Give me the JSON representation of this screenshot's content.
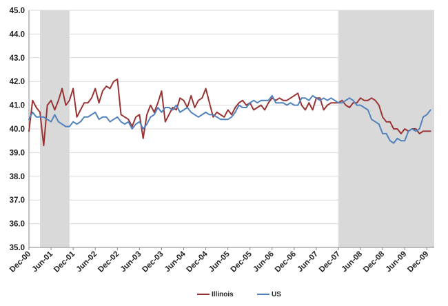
{
  "chart_data": {
    "type": "line",
    "title": "",
    "xlabel": "",
    "ylabel": "",
    "ylim": [
      35.0,
      45.0
    ],
    "yticks": [
      "35.0",
      "36.0",
      "37.0",
      "38.0",
      "39.0",
      "40.0",
      "41.0",
      "42.0",
      "43.0",
      "44.0",
      "45.0"
    ],
    "xticks": [
      "Dec-00",
      "Jun-01",
      "Dec-01",
      "Jun-02",
      "Dec-02",
      "Jun-03",
      "Dec-03",
      "Jun-04",
      "Dec-04",
      "Jun-05",
      "Dec-05",
      "Jun-06",
      "Dec-06",
      "Jun-07",
      "Dec-07",
      "Jun-08",
      "Dec-08",
      "Jun-09",
      "Dec-09"
    ],
    "x_start": "Dec-00",
    "x_end": "Feb-10",
    "recessions": [
      {
        "start": "Mar-01",
        "end": "Nov-01"
      },
      {
        "start": "Dec-07",
        "end": "Feb-10"
      }
    ],
    "grid": true,
    "legend_position": "bottom",
    "colors": {
      "illinois": "#993333",
      "us": "#4f81bd",
      "recession": "#d9d9d9",
      "grid": "#d9d9d9"
    },
    "series": [
      {
        "name": "Illinois",
        "values": [
          39.9,
          41.2,
          40.9,
          40.7,
          39.3,
          41.0,
          41.2,
          40.8,
          41.2,
          41.7,
          41.0,
          41.2,
          41.7,
          40.5,
          40.8,
          41.1,
          41.1,
          41.3,
          41.7,
          41.1,
          41.6,
          41.8,
          41.7,
          42.0,
          42.1,
          40.6,
          40.5,
          40.4,
          40.1,
          40.5,
          40.6,
          39.6,
          40.6,
          41.0,
          40.7,
          41.1,
          41.6,
          40.3,
          40.6,
          40.9,
          40.8,
          41.3,
          41.2,
          40.9,
          41.4,
          40.9,
          41.2,
          41.3,
          41.7,
          41.1,
          40.5,
          40.7,
          40.6,
          40.5,
          40.8,
          40.6,
          40.9,
          41.1,
          41.2,
          41.0,
          41.1,
          40.8,
          40.9,
          41.0,
          40.8,
          41.1,
          41.3,
          41.2,
          41.3,
          41.2,
          41.2,
          41.3,
          41.4,
          41.5,
          41.0,
          40.8,
          41.1,
          40.8,
          41.3,
          41.3,
          40.8,
          41.0,
          41.1,
          41.1,
          41.1,
          41.2,
          41.0,
          40.9,
          41.1,
          41.1,
          41.3,
          41.2,
          41.2,
          41.3,
          41.2,
          41.0,
          40.5,
          40.3,
          40.3,
          40.0,
          40.0,
          39.8,
          40.0,
          39.9,
          40.0,
          40.0,
          39.8,
          39.9,
          39.9,
          39.9
        ],
        "color": "#993333"
      },
      {
        "name": "US",
        "values": [
          40.4,
          40.7,
          40.5,
          40.5,
          40.5,
          40.4,
          40.3,
          40.6,
          40.3,
          40.2,
          40.1,
          40.1,
          40.3,
          40.2,
          40.3,
          40.5,
          40.5,
          40.6,
          40.7,
          40.4,
          40.5,
          40.5,
          40.3,
          40.4,
          40.5,
          40.3,
          40.2,
          40.3,
          40.0,
          40.2,
          40.3,
          40.0,
          40.2,
          40.5,
          40.6,
          40.9,
          40.7,
          40.9,
          40.9,
          40.8,
          41.0,
          40.7,
          40.8,
          40.9,
          40.7,
          40.6,
          40.5,
          40.6,
          40.7,
          40.6,
          40.6,
          40.5,
          40.4,
          40.4,
          40.4,
          40.5,
          40.7,
          41.0,
          40.9,
          40.9,
          41.1,
          41.2,
          41.1,
          41.2,
          41.2,
          41.2,
          41.4,
          41.1,
          41.1,
          41.1,
          41.0,
          41.1,
          41.0,
          41.0,
          41.3,
          41.3,
          41.2,
          41.4,
          41.3,
          41.2,
          41.3,
          41.2,
          41.3,
          41.2,
          41.1,
          41.1,
          41.2,
          41.3,
          41.2,
          41.0,
          41.0,
          40.9,
          40.8,
          40.4,
          40.3,
          40.2,
          39.8,
          39.8,
          39.5,
          39.4,
          39.6,
          39.5,
          39.5,
          39.9,
          40.0,
          39.9,
          40.0,
          40.5,
          40.6,
          40.8
        ],
        "color": "#4f81bd"
      }
    ]
  }
}
